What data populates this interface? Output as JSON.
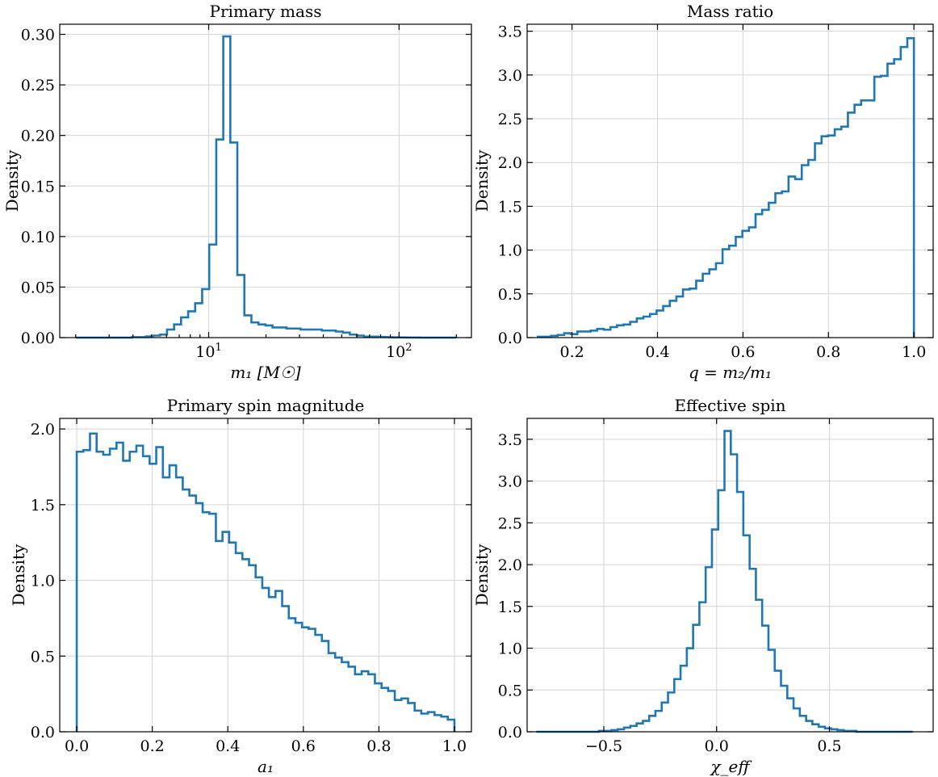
{
  "chart_data": [
    {
      "type": "histogram",
      "title": "Primary mass",
      "xlabel": "m₁ [M☉]",
      "ylabel": "Density",
      "xscale": "log",
      "xlim": [
        1.65,
        240
      ],
      "ylim": [
        0,
        0.31
      ],
      "xticks": [
        {
          "value": 10,
          "base": "10",
          "exp": "1"
        },
        {
          "value": 100,
          "base": "10",
          "exp": "2"
        }
      ],
      "yticks": [
        0.0,
        0.05,
        0.1,
        0.15,
        0.2,
        0.25,
        0.3
      ],
      "ytick_labels": [
        "0.00",
        "0.05",
        "0.10",
        "0.15",
        "0.20",
        "0.25",
        "0.30"
      ],
      "grid": true,
      "bin_edges": [
        2.0,
        2.18,
        2.37,
        2.58,
        2.81,
        3.06,
        3.33,
        3.63,
        3.95,
        4.3,
        4.68,
        5.1,
        5.55,
        6.04,
        6.58,
        7.16,
        7.8,
        8.49,
        9.24,
        10.06,
        10.96,
        11.93,
        12.99,
        14.14,
        15.4,
        16.76,
        18.25,
        19.87,
        21.64,
        23.56,
        25.65,
        27.93,
        30.41,
        33.11,
        36.05,
        39.25,
        42.73,
        46.53,
        50.66,
        55.16,
        60.06,
        65.39,
        71.2,
        77.52,
        84.4,
        91.9,
        100.06,
        108.94,
        118.62,
        129.15,
        140.62,
        153.1,
        166.7,
        181.5,
        200.0
      ],
      "values": [
        0.0,
        0.0,
        0.0,
        0.0,
        0.0,
        0.0,
        0.0,
        0.0,
        0.0005,
        0.0005,
        0.0012,
        0.002,
        0.003,
        0.008,
        0.013,
        0.02,
        0.026,
        0.034,
        0.048,
        0.092,
        0.196,
        0.298,
        0.193,
        0.062,
        0.022,
        0.015,
        0.013,
        0.012,
        0.01,
        0.01,
        0.009,
        0.009,
        0.008,
        0.008,
        0.008,
        0.007,
        0.007,
        0.006,
        0.005,
        0.003,
        0.002,
        0.001,
        0.001,
        0.0007,
        0.0005,
        0.0003,
        0.0002,
        0.0001,
        0.0001,
        0.0,
        0.0,
        0.0,
        0.0,
        0.0
      ]
    },
    {
      "type": "histogram",
      "title": "Mass ratio",
      "xlabel": "q = m₂/m₁",
      "ylabel": "Density",
      "xlim": [
        0.095,
        1.045
      ],
      "ylim": [
        0,
        3.58
      ],
      "xticks": [
        0.2,
        0.4,
        0.6,
        0.8,
        1.0
      ],
      "xtick_labels": [
        "0.2",
        "0.4",
        "0.6",
        "0.8",
        "1.0"
      ],
      "yticks": [
        0.0,
        0.5,
        1.0,
        1.5,
        2.0,
        2.5,
        3.0,
        3.5
      ],
      "ytick_labels": [
        "0.0",
        "0.5",
        "1.0",
        "1.5",
        "2.0",
        "2.5",
        "3.0",
        "3.5"
      ],
      "grid": true,
      "bin_range": [
        0.12,
        1.0
      ],
      "values": [
        0.01,
        0.01,
        0.02,
        0.03,
        0.05,
        0.04,
        0.07,
        0.07,
        0.08,
        0.1,
        0.09,
        0.12,
        0.14,
        0.15,
        0.18,
        0.22,
        0.24,
        0.27,
        0.31,
        0.36,
        0.42,
        0.47,
        0.55,
        0.56,
        0.65,
        0.73,
        0.78,
        0.85,
        1.01,
        1.05,
        1.15,
        1.22,
        1.26,
        1.41,
        1.46,
        1.54,
        1.65,
        1.67,
        1.84,
        1.81,
        1.97,
        2.03,
        2.22,
        2.3,
        2.31,
        2.38,
        2.41,
        2.57,
        2.66,
        2.71,
        2.71,
        2.98,
        2.99,
        3.13,
        3.18,
        3.32,
        3.42
      ]
    },
    {
      "type": "histogram",
      "title": "Primary spin magnitude",
      "xlabel": "a₁",
      "ylabel": "Density",
      "xlim": [
        -0.045,
        1.045
      ],
      "ylim": [
        0,
        2.07
      ],
      "xticks": [
        0.0,
        0.2,
        0.4,
        0.6,
        0.8,
        1.0
      ],
      "xtick_labels": [
        "0.0",
        "0.2",
        "0.4",
        "0.6",
        "0.8",
        "1.0"
      ],
      "yticks": [
        0.0,
        0.5,
        1.0,
        1.5,
        2.0
      ],
      "ytick_labels": [
        "0.0",
        "0.5",
        "1.0",
        "1.5",
        "2.0"
      ],
      "grid": true,
      "bin_range": [
        0.0,
        1.0
      ],
      "values": [
        1.85,
        1.86,
        1.97,
        1.85,
        1.83,
        1.87,
        1.91,
        1.79,
        1.85,
        1.89,
        1.82,
        1.77,
        1.88,
        1.68,
        1.76,
        1.68,
        1.6,
        1.56,
        1.51,
        1.45,
        1.44,
        1.26,
        1.32,
        1.25,
        1.18,
        1.14,
        1.1,
        1.02,
        0.95,
        0.89,
        0.93,
        0.83,
        0.75,
        0.72,
        0.69,
        0.68,
        0.64,
        0.6,
        0.52,
        0.49,
        0.46,
        0.43,
        0.38,
        0.4,
        0.38,
        0.32,
        0.29,
        0.27,
        0.21,
        0.22,
        0.19,
        0.14,
        0.12,
        0.13,
        0.11,
        0.1,
        0.08
      ]
    },
    {
      "type": "histogram",
      "title": "Effective spin",
      "xlabel": "χ_eff",
      "ylabel": "Density",
      "xlim": [
        -0.84,
        0.96
      ],
      "ylim": [
        0,
        3.75
      ],
      "xticks": [
        -0.5,
        0.0,
        0.5
      ],
      "xtick_labels": [
        "−0.5",
        "0.0",
        "0.5"
      ],
      "yticks": [
        0.0,
        0.5,
        1.0,
        1.5,
        2.0,
        2.5,
        3.0,
        3.5
      ],
      "ytick_labels": [
        "0.0",
        "0.5",
        "1.0",
        "1.5",
        "2.0",
        "2.5",
        "3.0",
        "3.5"
      ],
      "grid": true,
      "bin_range": [
        -0.8,
        0.87
      ],
      "values": [
        0.0,
        0.0,
        0.0,
        0.0,
        0.0,
        0.0,
        0.0,
        0.0,
        0.0,
        0.0,
        0.01,
        0.01,
        0.02,
        0.03,
        0.05,
        0.07,
        0.1,
        0.13,
        0.19,
        0.25,
        0.35,
        0.47,
        0.63,
        0.79,
        1.0,
        1.28,
        1.55,
        1.97,
        2.42,
        2.89,
        3.6,
        3.32,
        2.87,
        2.35,
        1.95,
        1.58,
        1.27,
        0.98,
        0.73,
        0.55,
        0.4,
        0.28,
        0.19,
        0.13,
        0.09,
        0.06,
        0.04,
        0.03,
        0.02,
        0.01,
        0.01,
        0.0,
        0.0,
        0.0,
        0.0,
        0.0,
        0.0,
        0.0,
        0.0,
        0.0
      ]
    }
  ]
}
